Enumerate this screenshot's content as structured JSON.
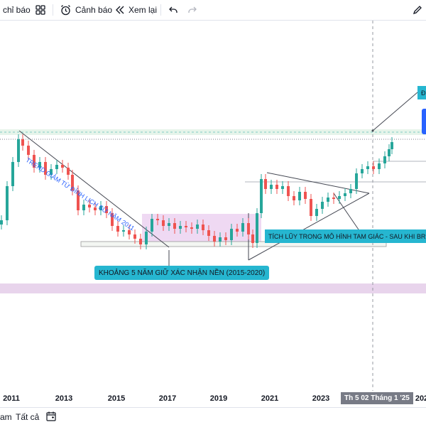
{
  "toolbar": {
    "indicators_label": "chỉ báo",
    "alert_label": "Cảnh báo",
    "replay_label": "Xem lại"
  },
  "chart": {
    "x_axis_labels": [
      "2011",
      "2013",
      "2015",
      "2017",
      "2019",
      "2021",
      "2023",
      "202"
    ],
    "crosshair_date": "Th 5 02 Tháng 1 '25",
    "annotations": {
      "trend_text": "TREND GIẢM TỪ ĐỈNH LỊCH SỬ NĂM 2011",
      "base_callout": "KHOẢNG 5 NĂM GIỮ XÁC NHẬN NỀN (2015-2020)",
      "triangle_callout": "TÍCH LŨY TRONG MÔ HÌNH TAM GIÁC - SAU KHI BREAK O",
      "edge_callout": "Đ"
    },
    "colors": {
      "up": "#26a69a",
      "down": "#ef5350",
      "base_zone": "#e1bee7",
      "callout": "#26b6d0",
      "trend_line": "#2962ff"
    }
  },
  "bottom": {
    "range_partial": "am",
    "all_label": "Tất cả"
  }
}
